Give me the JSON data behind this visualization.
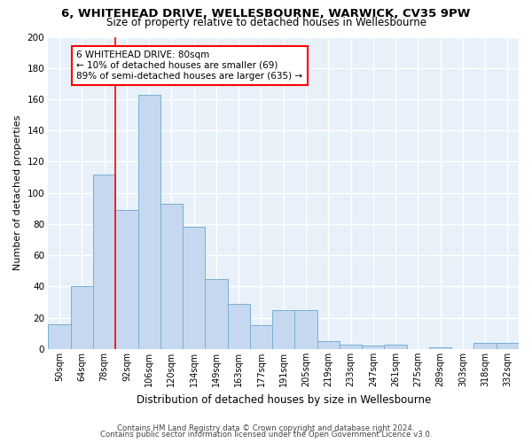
{
  "title1": "6, WHITEHEAD DRIVE, WELLESBOURNE, WARWICK, CV35 9PW",
  "title2": "Size of property relative to detached houses in Wellesbourne",
  "xlabel": "Distribution of detached houses by size in Wellesbourne",
  "ylabel": "Number of detached properties",
  "footnote1": "Contains HM Land Registry data © Crown copyright and database right 2024.",
  "footnote2": "Contains public sector information licensed under the Open Government Licence v3.0.",
  "categories": [
    "50sqm",
    "64sqm",
    "78sqm",
    "92sqm",
    "106sqm",
    "120sqm",
    "134sqm",
    "149sqm",
    "163sqm",
    "177sqm",
    "191sqm",
    "205sqm",
    "219sqm",
    "233sqm",
    "247sqm",
    "261sqm",
    "275sqm",
    "289sqm",
    "303sqm",
    "318sqm",
    "332sqm"
  ],
  "values": [
    16,
    40,
    112,
    89,
    163,
    93,
    78,
    45,
    29,
    15,
    25,
    25,
    5,
    3,
    2,
    3,
    0,
    1,
    0,
    4,
    4
  ],
  "bar_color": "#c5d8f0",
  "bar_edge_color": "#7aafd4",
  "bg_color": "#e8f0fa",
  "grid_color": "#ffffff",
  "red_line_x": 2.5,
  "annotation_title": "6 WHITEHEAD DRIVE: 80sqm",
  "annotation_line1": "← 10% of detached houses are smaller (69)",
  "annotation_line2": "89% of semi-detached houses are larger (635) →",
  "ylim": [
    0,
    200
  ],
  "yticks": [
    0,
    20,
    40,
    60,
    80,
    100,
    120,
    140,
    160,
    180,
    200
  ]
}
